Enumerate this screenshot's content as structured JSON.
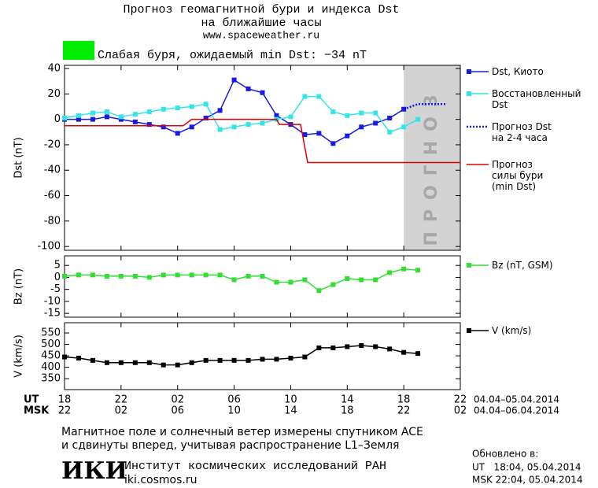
{
  "header": {
    "title": "Прогноз геомагнитной бури и индекса Dst",
    "subtitle": "на ближайшие часы",
    "url": "www.spaceweather.ru"
  },
  "status": {
    "color": "#00ee00",
    "text": "Слабая буря, ожидаемый min Dst: −34 nT"
  },
  "chart_data": [
    {
      "type": "line",
      "ylabel": "Dst (nT)",
      "xlim": [
        0,
        28
      ],
      "ylim": [
        -103,
        42.5
      ],
      "yticks": [
        40,
        20,
        0,
        -20,
        -40,
        -60,
        -80,
        -100
      ],
      "forecast_region": {
        "x": [
          24,
          28
        ],
        "label": "ПРОГНОЗ",
        "color": "#d3d3d3"
      },
      "series": [
        {
          "name": "Dst, Киото",
          "color": "#1a1ae0",
          "marker": "square",
          "dash": false,
          "x": [
            0,
            1,
            2,
            3,
            4,
            5,
            6,
            7,
            8,
            9,
            10,
            11,
            12,
            13,
            14,
            15,
            16,
            17,
            18,
            19,
            20,
            21,
            22,
            23,
            24
          ],
          "values": [
            0,
            0,
            0,
            2,
            0,
            -2,
            -4,
            -6,
            -11,
            -6,
            1,
            7,
            31,
            24,
            21,
            3,
            -4,
            -12,
            -11,
            -19,
            -13,
            -6,
            -3,
            1,
            8
          ]
        },
        {
          "name": "Восстановленный\nDst",
          "color": "#33e6e6",
          "marker": "square",
          "dash": false,
          "x": [
            0,
            1,
            2,
            3,
            4,
            5,
            6,
            7,
            8,
            9,
            10,
            11,
            12,
            13,
            14,
            15,
            16,
            17,
            18,
            19,
            20,
            21,
            22,
            23,
            24,
            25
          ],
          "values": [
            1,
            3,
            5,
            6,
            2,
            4,
            6,
            8,
            9,
            10,
            12,
            -8,
            -6,
            -4,
            -3,
            0,
            2,
            18,
            18,
            6,
            3,
            5,
            5,
            -10,
            -6,
            0
          ]
        },
        {
          "name": "Прогноз Dst\nна 2-4 часа",
          "color": "#1a1ae0",
          "marker": "none",
          "dash": true,
          "x": [
            24,
            25,
            26,
            27
          ],
          "values": [
            8,
            12,
            12,
            12
          ]
        },
        {
          "name": "Прогноз\nсилы бури\n(min Dst)",
          "color": "#e00000",
          "marker": "none",
          "dash": false,
          "x": [
            0,
            8.4,
            9,
            15,
            15.2,
            16.7,
            17.2,
            28
          ],
          "values": [
            -5,
            -5,
            0,
            0,
            -4,
            -4,
            -34,
            -34
          ]
        }
      ]
    },
    {
      "type": "line",
      "ylabel": "Bz (nT)",
      "xlim": [
        0,
        28
      ],
      "ylim": [
        -16.6,
        9
      ],
      "yticks": [
        5,
        0,
        -5,
        -10,
        -15
      ],
      "series": [
        {
          "name": "Bz (nT, GSM)",
          "color": "#33dd33",
          "marker": "square",
          "dash": false,
          "x": [
            0,
            1,
            2,
            3,
            4,
            5,
            6,
            7,
            8,
            9,
            10,
            11,
            12,
            13,
            14,
            15,
            16,
            17,
            18,
            19,
            20,
            21,
            22,
            23,
            24,
            25
          ],
          "values": [
            0.5,
            1,
            1,
            0.5,
            0.5,
            0.5,
            0,
            1,
            1,
            1,
            1,
            1,
            -1,
            0.5,
            0.5,
            -2,
            -2,
            -1,
            -5.5,
            -3,
            -0.5,
            -1,
            -1,
            2,
            3.5,
            3
          ]
        }
      ]
    },
    {
      "type": "line",
      "ylabel": "V (km/s)",
      "xlim": [
        0,
        28
      ],
      "ylim": [
        302,
        595
      ],
      "yticks": [
        550,
        500,
        450,
        400,
        350
      ],
      "xticks": [
        {
          "value": 0,
          "label": "18"
        },
        {
          "value": 4,
          "label": "22"
        },
        {
          "value": 8,
          "label": "02"
        },
        {
          "value": 12,
          "label": "06"
        },
        {
          "value": 16,
          "label": "10"
        },
        {
          "value": 20,
          "label": "14"
        },
        {
          "value": 24,
          "label": "18"
        },
        {
          "value": 28,
          "label": "22"
        }
      ],
      "x2ticks": [
        {
          "value": 0,
          "label": "22"
        },
        {
          "value": 4,
          "label": "02"
        },
        {
          "value": 8,
          "label": "06"
        },
        {
          "value": 12,
          "label": "10"
        },
        {
          "value": 16,
          "label": "14"
        },
        {
          "value": 20,
          "label": "18"
        },
        {
          "value": 24,
          "label": "22"
        },
        {
          "value": 28,
          "label": "02"
        }
      ],
      "xlabel": "UT",
      "x2label": "MSK",
      "xrange": "04.04–05.04.2014",
      "x2range": "04.04–06.04.2014",
      "series": [
        {
          "name": "V (km/s)",
          "color": "#000000",
          "marker": "square",
          "dash": false,
          "x": [
            0,
            1,
            2,
            3,
            4,
            5,
            6,
            7,
            8,
            9,
            10,
            11,
            12,
            13,
            14,
            15,
            16,
            17,
            18,
            19,
            20,
            21,
            22,
            23,
            24,
            25
          ],
          "values": [
            445,
            440,
            430,
            420,
            420,
            420,
            420,
            410,
            410,
            420,
            430,
            430,
            430,
            430,
            435,
            435,
            440,
            445,
            485,
            485,
            490,
            495,
            490,
            480,
            465,
            460
          ]
        }
      ]
    }
  ],
  "footer": {
    "note": [
      "Магнитное поле и солнечный ветер измерены спутником ACE",
      "и сдвинуты вперед, учитывая распространение L1–Земля"
    ],
    "logo": "ИКИ",
    "institute": "Институт космических исследований РАН",
    "site": "iki.cosmos.ru",
    "updated": [
      "Обновлено в:",
      "UT   18:04, 05.04.2014",
      "MSK 22:04, 05.04.2014"
    ]
  }
}
